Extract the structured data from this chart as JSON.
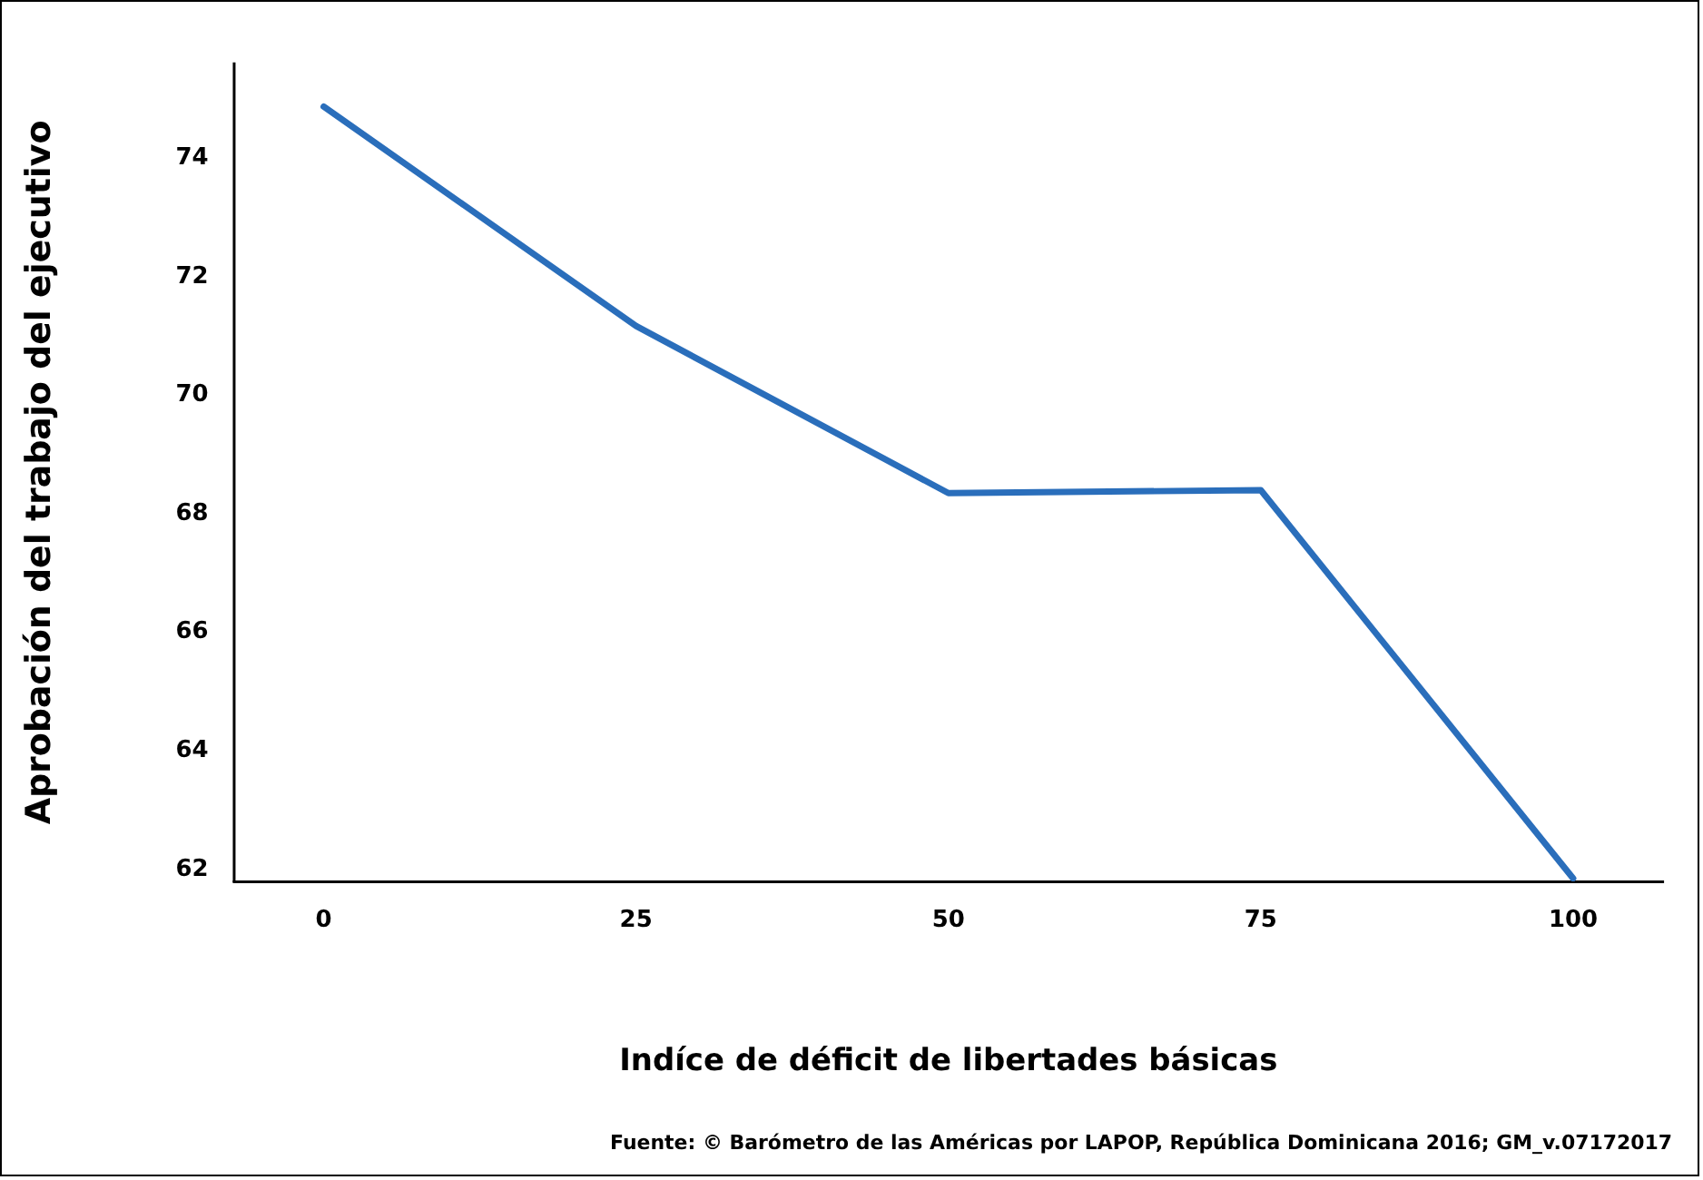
{
  "chart_data": {
    "type": "line",
    "xlabel": "Indíce de déficit de libertades básicas",
    "ylabel": "Aprobación del trabajo del ejecutivo",
    "annotations": [
      "Fuente: © Barómetro de las Américas por LAPOP, República Dominicana 2016; GM_v.07172017"
    ],
    "x": [
      0,
      25,
      50,
      75,
      100
    ],
    "series": [
      {
        "color": "#2a6ebb",
        "values": [
          74.87,
          71.17,
          68.35,
          68.4,
          61.85
        ]
      }
    ],
    "xlim": [
      -7.2,
      107.2
    ],
    "xticks": [
      0,
      25,
      50,
      75,
      100
    ],
    "ylim": [
      61.8,
      75.6
    ],
    "yticks": [
      62,
      64,
      66,
      68,
      70,
      72,
      74
    ],
    "grid": false,
    "legend": false,
    "marker": "none",
    "line_style": "solid"
  }
}
